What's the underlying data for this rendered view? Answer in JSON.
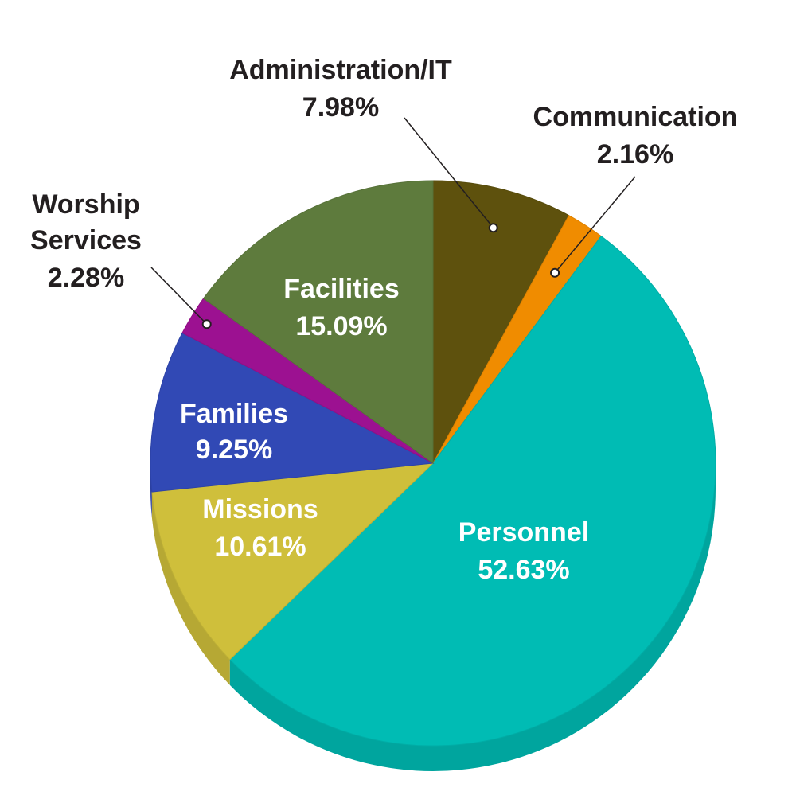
{
  "chart_data": {
    "type": "pie",
    "title": "",
    "slices": [
      {
        "label": "Administration/IT",
        "value": 7.98,
        "display": "7.98%",
        "color": "#5e510d"
      },
      {
        "label": "Communication",
        "value": 2.16,
        "display": "2.16%",
        "color": "#f08c00"
      },
      {
        "label": "Personnel",
        "value": 52.63,
        "display": "52.63%",
        "color": "#00bcb4"
      },
      {
        "label": "Missions",
        "value": 10.61,
        "display": "10.61%",
        "color": "#cfbf3b"
      },
      {
        "label": "Families",
        "value": 9.25,
        "display": "9.25%",
        "color": "#3149b5"
      },
      {
        "label": "Worship Services",
        "value": 2.28,
        "display": "2.28%",
        "color": "#9c1191"
      },
      {
        "label": "Facilities",
        "value": 15.09,
        "display": "15.09%",
        "color": "#5e7b3d"
      }
    ],
    "start_angle_deg": 0,
    "direction": "clockwise",
    "style": "3d-edge",
    "legend": "none"
  }
}
